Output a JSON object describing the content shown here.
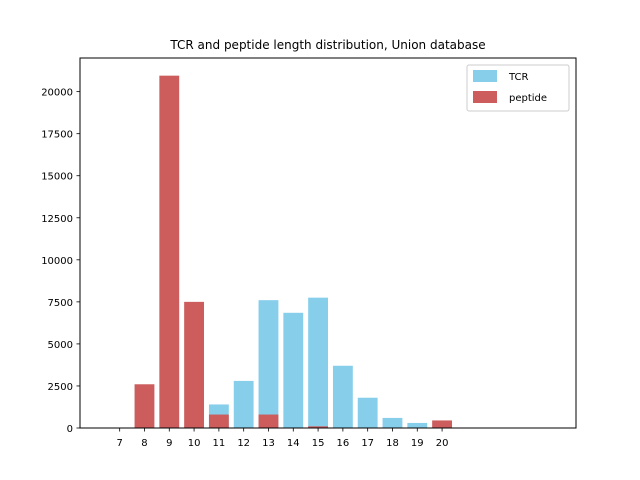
{
  "chart_data": {
    "type": "bar",
    "title": "TCR and peptide length distribution, Union database",
    "xlabel": "",
    "ylabel": "",
    "x_ticks": [
      "7",
      "8",
      "9",
      "10",
      "11",
      "12",
      "13",
      "14",
      "15",
      "16",
      "17",
      "18",
      "19",
      "20"
    ],
    "y_ticks": [
      "0",
      "2500",
      "5000",
      "7500",
      "10000",
      "12500",
      "15000",
      "17500",
      "20000"
    ],
    "xlim": [
      5.4,
      25.4
    ],
    "ylim": [
      0,
      22000
    ],
    "grid": false,
    "legend_position": "top-right",
    "series": [
      {
        "name": "TCR",
        "color": "#87ceeb",
        "x": [
          7,
          8,
          9,
          10,
          11,
          12,
          13,
          14,
          15,
          16,
          17,
          18,
          19,
          20
        ],
        "values": [
          0,
          0,
          0,
          0,
          1400,
          2800,
          7600,
          6850,
          7750,
          3700,
          1800,
          600,
          300,
          0
        ]
      },
      {
        "name": "peptide",
        "color": "#cd5c5c",
        "x": [
          7,
          8,
          9,
          10,
          11,
          12,
          13,
          14,
          15,
          16,
          17,
          18,
          19,
          20
        ],
        "values": [
          0,
          2600,
          20950,
          7500,
          800,
          0,
          800,
          0,
          100,
          0,
          0,
          0,
          0,
          450
        ]
      }
    ]
  }
}
